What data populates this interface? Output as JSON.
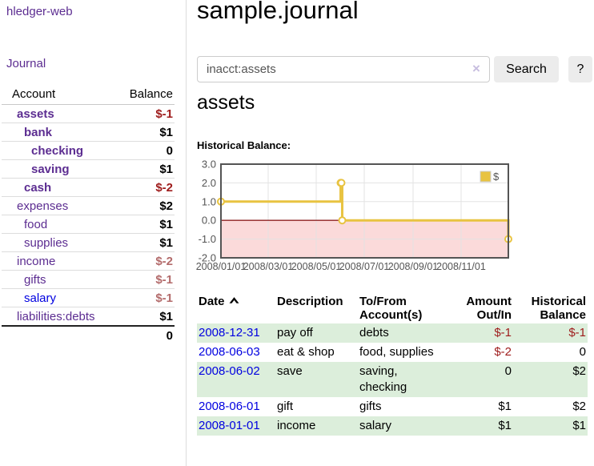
{
  "sidebar": {
    "brand": "hledger-web",
    "journal_link": "Journal",
    "accounts": {
      "headers": {
        "account": "Account",
        "balance": "Balance"
      },
      "rows": [
        {
          "name": "assets",
          "balance": "$-1",
          "indent": 1,
          "bold": true,
          "neg": "strong",
          "link": "purple"
        },
        {
          "name": "bank",
          "balance": "$1",
          "indent": 2,
          "bold": true,
          "neg": null,
          "link": "purple"
        },
        {
          "name": "checking",
          "balance": "0",
          "indent": 3,
          "bold": true,
          "neg": null,
          "link": "purple"
        },
        {
          "name": "saving",
          "balance": "$1",
          "indent": 3,
          "bold": true,
          "neg": null,
          "link": "purple"
        },
        {
          "name": "cash",
          "balance": "$-2",
          "indent": 2,
          "bold": true,
          "neg": "strong",
          "link": "purple"
        },
        {
          "name": "expenses",
          "balance": "$2",
          "indent": 1,
          "bold": false,
          "neg": null,
          "link": "purple"
        },
        {
          "name": "food",
          "balance": "$1",
          "indent": 2,
          "bold": false,
          "neg": null,
          "link": "purple"
        },
        {
          "name": "supplies",
          "balance": "$1",
          "indent": 2,
          "bold": false,
          "neg": null,
          "link": "purple"
        },
        {
          "name": "income",
          "balance": "$-2",
          "indent": 1,
          "bold": false,
          "neg": "soft",
          "link": "purple"
        },
        {
          "name": "gifts",
          "balance": "$-1",
          "indent": 2,
          "bold": false,
          "neg": "soft",
          "link": "purple"
        },
        {
          "name": "salary",
          "balance": "$-1",
          "indent": 2,
          "bold": false,
          "neg": "soft",
          "link": "blue"
        },
        {
          "name": "liabilities:debts",
          "balance": "$1",
          "indent": 1,
          "bold": false,
          "neg": null,
          "link": "purple"
        }
      ],
      "total": "0"
    }
  },
  "header": {
    "title": "sample.journal"
  },
  "search": {
    "value": "inacct:assets",
    "clear_icon": "×",
    "button_label": "Search",
    "help_label": "?"
  },
  "account_page": {
    "title": "assets",
    "chart_heading": "Historical Balance:"
  },
  "chart_data": {
    "type": "line",
    "steps": true,
    "series": [
      {
        "name": "$",
        "color": "#e8c341",
        "points": [
          {
            "date": "2008-01-01",
            "value": 1
          },
          {
            "date": "2008-06-01",
            "value": 2
          },
          {
            "date": "2008-06-02",
            "value": 2
          },
          {
            "date": "2008-06-03",
            "value": 0
          },
          {
            "date": "2008-12-31",
            "value": -1
          }
        ]
      }
    ],
    "ylim": [
      -2,
      3
    ],
    "ytick_values": [
      3,
      2,
      1,
      0,
      -1,
      -2
    ],
    "ytick_labels": [
      "3.0",
      "2.0",
      "1.0",
      "0.0",
      "-1.0",
      "-2.0"
    ],
    "xtick_labels": [
      "2008/01/01",
      "2008/03/01",
      "2008/05/01",
      "2008/07/01",
      "2008/09/01",
      "2008/11/01"
    ],
    "legend": {
      "label": "$",
      "position": "top-right"
    },
    "grid": true,
    "colors": {
      "negative_fill": "#fbdada",
      "zero_line": "#8e2222",
      "gridline": "#e3e3e3",
      "plot_border": "#545454",
      "tick_text": "#545454",
      "marker_fill": "#ffffff"
    }
  },
  "register": {
    "sort_icon": "caret-up",
    "columns": {
      "date": "Date",
      "description": "Description",
      "accounts": "To/From Account(s)",
      "amount": "Amount Out/In",
      "balance": "Historical Balance"
    },
    "rows": [
      {
        "date": "2008-12-31",
        "description": "pay off",
        "accounts": "debts",
        "amount": "$-1",
        "amount_neg": true,
        "balance": "$-1",
        "balance_neg": true
      },
      {
        "date": "2008-06-03",
        "description": "eat & shop",
        "accounts": "food, supplies",
        "amount": "$-2",
        "amount_neg": true,
        "balance": "0",
        "balance_neg": false
      },
      {
        "date": "2008-06-02",
        "description": "save",
        "accounts": "saving, checking",
        "amount": "0",
        "amount_neg": false,
        "balance": "$2",
        "balance_neg": false
      },
      {
        "date": "2008-06-01",
        "description": "gift",
        "accounts": "gifts",
        "amount": "$1",
        "amount_neg": false,
        "balance": "$2",
        "balance_neg": false
      },
      {
        "date": "2008-01-01",
        "description": "income",
        "accounts": "salary",
        "amount": "$1",
        "amount_neg": false,
        "balance": "$1",
        "balance_neg": false
      }
    ]
  }
}
